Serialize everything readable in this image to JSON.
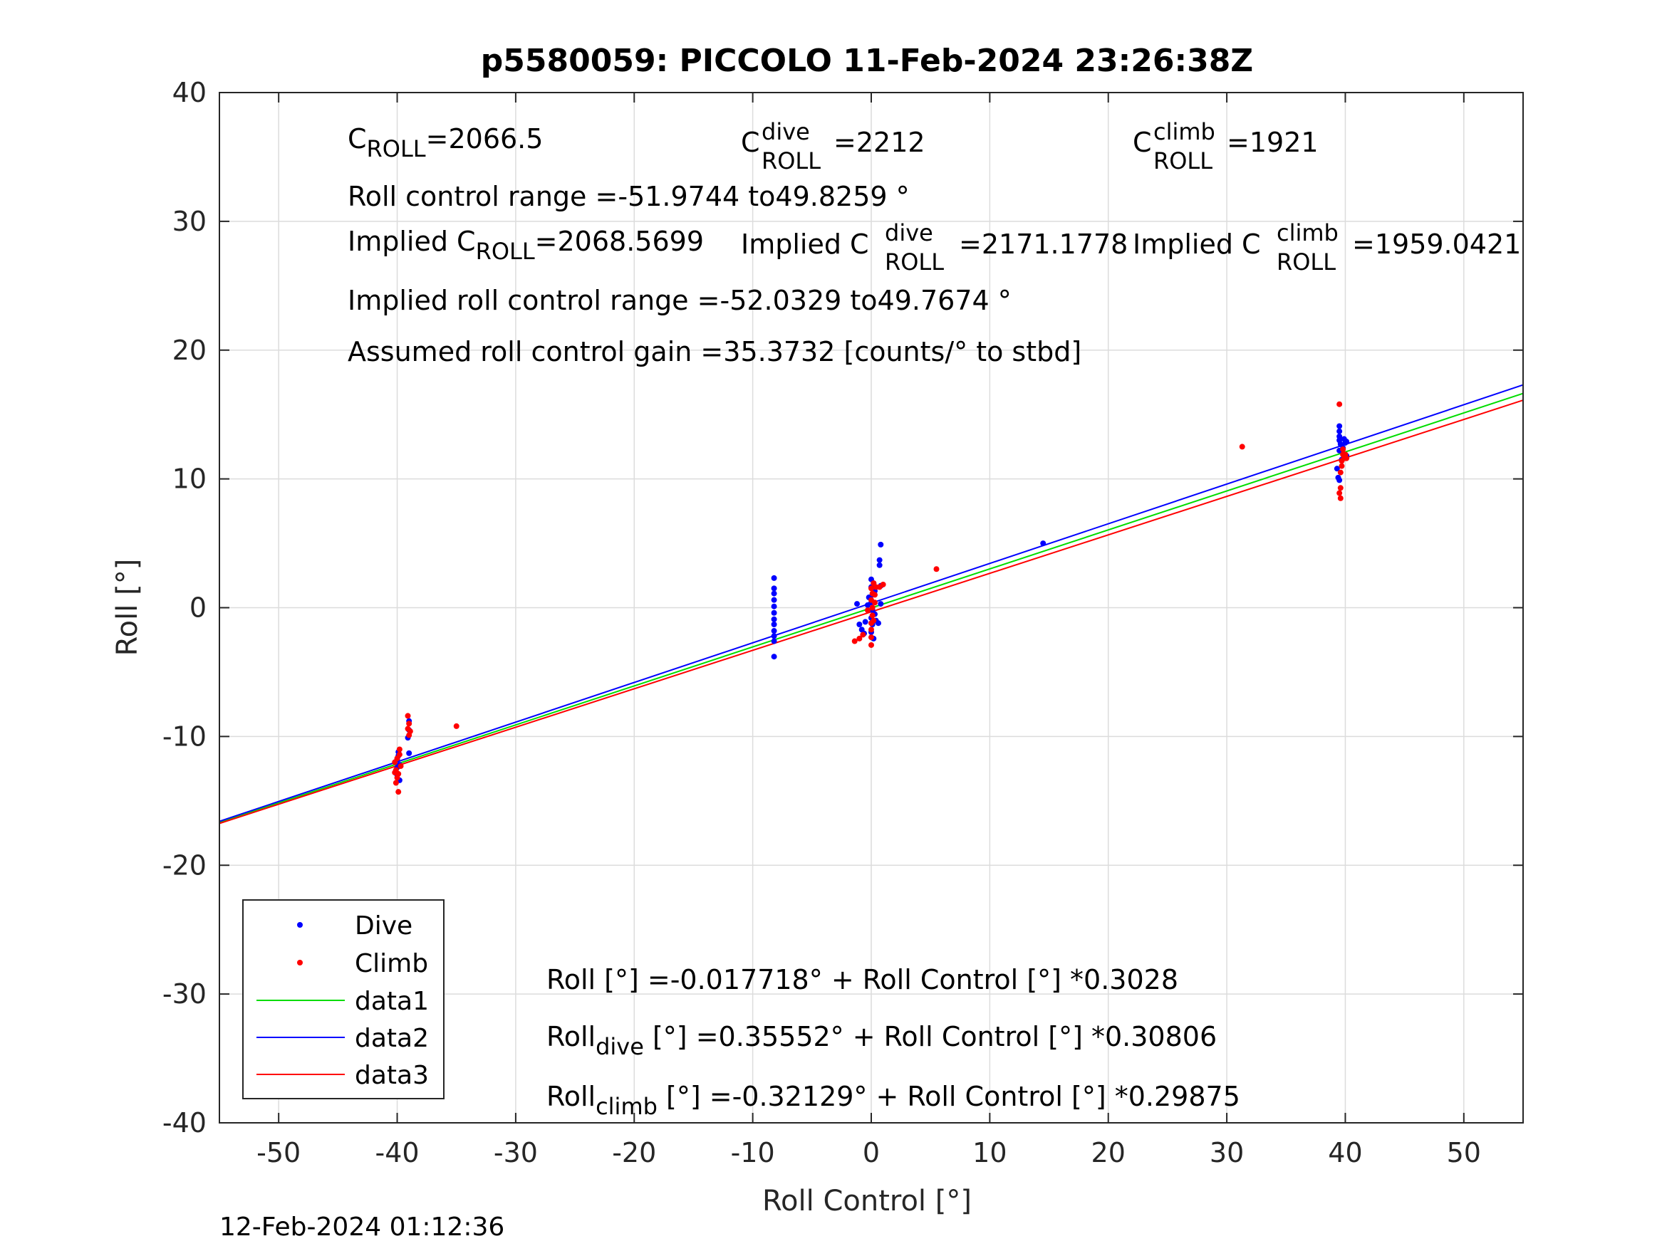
{
  "chart_data": {
    "type": "scatter",
    "title": "p5580059: PICCOLO 11-Feb-2024 23:26:38Z",
    "xlabel": "Roll Control [°]",
    "ylabel": "Roll [°]",
    "xlim": [
      -55,
      55
    ],
    "ylim": [
      -40,
      40
    ],
    "xticks": [
      -50,
      -40,
      -30,
      -20,
      -10,
      0,
      10,
      20,
      30,
      40,
      50
    ],
    "yticks": [
      -40,
      -30,
      -20,
      -10,
      0,
      10,
      20,
      30,
      40
    ],
    "grid": true,
    "legend_position": "bottom-left",
    "timestamp": "12-Feb-2024 01:12:36",
    "colors": {
      "dive": "#0000ff",
      "climb": "#ff0000",
      "data1": "#00dd00",
      "data2": "#0000ff",
      "data3": "#ff0000"
    },
    "legend": [
      {
        "label": "Dive",
        "kind": "marker",
        "color": "#0000ff"
      },
      {
        "label": "Climb",
        "kind": "marker",
        "color": "#ff0000"
      },
      {
        "label": "data1",
        "kind": "line",
        "color": "#00dd00"
      },
      {
        "label": "data2",
        "kind": "line",
        "color": "#0000ff"
      },
      {
        "label": "data3",
        "kind": "line",
        "color": "#ff0000"
      }
    ],
    "series": [
      {
        "name": "data1",
        "kind": "line",
        "intercept": -0.017718,
        "slope": 0.3028
      },
      {
        "name": "data2",
        "kind": "line",
        "intercept": 0.35552,
        "slope": 0.30806
      },
      {
        "name": "data3",
        "kind": "line",
        "intercept": -0.32129,
        "slope": 0.29875
      },
      {
        "name": "Dive",
        "kind": "scatter",
        "points": [
          [
            -40.0,
            -11.8
          ],
          [
            -40.0,
            -12.4
          ],
          [
            -40.0,
            -13.0
          ],
          [
            -39.8,
            -12.2
          ],
          [
            -39.9,
            -11.5
          ],
          [
            -40.1,
            -12.8
          ],
          [
            -39.8,
            -13.4
          ],
          [
            -39.9,
            -11.2
          ],
          [
            -39.0,
            -8.8
          ],
          [
            -39.0,
            -9.5
          ],
          [
            -39.0,
            -11.3
          ],
          [
            -39.1,
            -10.1
          ],
          [
            -8.2,
            2.3
          ],
          [
            -8.2,
            1.5
          ],
          [
            -8.2,
            1.1
          ],
          [
            -8.2,
            0.6
          ],
          [
            -8.2,
            0.1
          ],
          [
            -8.2,
            -0.4
          ],
          [
            -8.2,
            -0.9
          ],
          [
            -8.2,
            -1.3
          ],
          [
            -8.2,
            -1.8
          ],
          [
            -8.2,
            -2.2
          ],
          [
            -8.2,
            -2.6
          ],
          [
            -8.2,
            -3.8
          ],
          [
            -1.2,
            0.3
          ],
          [
            -1.0,
            -1.3
          ],
          [
            -0.8,
            -1.7
          ],
          [
            -0.6,
            -2.0
          ],
          [
            -0.5,
            -1.1
          ],
          [
            -0.3,
            0.2
          ],
          [
            -0.2,
            0.8
          ],
          [
            0.0,
            2.2
          ],
          [
            0.0,
            1.6
          ],
          [
            0.1,
            1.0
          ],
          [
            0.0,
            0.4
          ],
          [
            0.1,
            -0.2
          ],
          [
            0.0,
            -0.8
          ],
          [
            0.1,
            -1.3
          ],
          [
            0.0,
            -1.9
          ],
          [
            0.2,
            -2.4
          ],
          [
            0.3,
            1.3
          ],
          [
            0.3,
            -0.5
          ],
          [
            0.4,
            -1.0
          ],
          [
            0.2,
            1.9
          ],
          [
            0.6,
            -1.2
          ],
          [
            0.8,
            0.3
          ],
          [
            0.8,
            1.7
          ],
          [
            0.7,
            3.3
          ],
          [
            0.7,
            3.7
          ],
          [
            0.8,
            4.9
          ],
          [
            14.5,
            5.0
          ],
          [
            39.3,
            10.8
          ],
          [
            39.4,
            10.1
          ],
          [
            39.5,
            9.9
          ],
          [
            39.5,
            12.2
          ],
          [
            39.5,
            13.0
          ],
          [
            39.5,
            14.1
          ],
          [
            39.5,
            13.7
          ],
          [
            39.5,
            13.3
          ],
          [
            39.6,
            12.7
          ],
          [
            39.7,
            11.5
          ],
          [
            39.8,
            12.4
          ],
          [
            39.9,
            13.1
          ],
          [
            40.0,
            12.8
          ],
          [
            40.1,
            11.8
          ],
          [
            40.1,
            12.9
          ]
        ]
      },
      {
        "name": "Climb",
        "kind": "scatter",
        "points": [
          [
            -40.2,
            -12.0
          ],
          [
            -40.1,
            -12.6
          ],
          [
            -40.0,
            -13.2
          ],
          [
            -39.9,
            -14.3
          ],
          [
            -39.8,
            -11.4
          ],
          [
            -40.0,
            -11.7
          ],
          [
            -39.9,
            -12.9
          ],
          [
            -40.1,
            -13.6
          ],
          [
            -39.7,
            -12.3
          ],
          [
            -39.8,
            -11.0
          ],
          [
            -40.2,
            -12.8
          ],
          [
            -39.1,
            -8.4
          ],
          [
            -39.1,
            -9.4
          ],
          [
            -39.0,
            -9.9
          ],
          [
            -38.9,
            -9.6
          ],
          [
            -39.0,
            -9.0
          ],
          [
            -35.0,
            -9.2
          ],
          [
            -1.4,
            -2.6
          ],
          [
            -1.0,
            -2.4
          ],
          [
            -0.7,
            -2.1
          ],
          [
            -0.3,
            -0.2
          ],
          [
            0.0,
            -2.9
          ],
          [
            0.0,
            -2.3
          ],
          [
            0.0,
            -1.7
          ],
          [
            0.0,
            -1.2
          ],
          [
            0.1,
            -0.6
          ],
          [
            0.1,
            0.0
          ],
          [
            0.0,
            0.6
          ],
          [
            0.1,
            1.1
          ],
          [
            0.0,
            1.5
          ],
          [
            0.2,
            1.9
          ],
          [
            0.3,
            1.0
          ],
          [
            0.2,
            -1.0
          ],
          [
            0.3,
            0.4
          ],
          [
            0.4,
            1.6
          ],
          [
            0.7,
            1.6
          ],
          [
            1.0,
            1.8
          ],
          [
            5.5,
            3.0
          ],
          [
            31.3,
            12.5
          ],
          [
            39.5,
            15.8
          ],
          [
            39.6,
            8.5
          ],
          [
            39.5,
            8.9
          ],
          [
            39.6,
            9.3
          ],
          [
            39.6,
            10.5
          ],
          [
            39.7,
            11.0
          ],
          [
            39.7,
            11.4
          ],
          [
            39.8,
            11.9
          ],
          [
            39.8,
            12.3
          ],
          [
            39.9,
            11.6
          ],
          [
            40.0,
            11.9
          ],
          [
            40.1,
            11.6
          ]
        ]
      }
    ],
    "annotations": {
      "c_roll": {
        "base": "C",
        "sub": "ROLL",
        "value": "=2066.5"
      },
      "c_roll_dive": {
        "base": "C",
        "sup": "dive",
        "sub": "ROLL",
        "value": "=2212"
      },
      "c_roll_climb": {
        "base": "C",
        "sup": "climb",
        "sub": "ROLL",
        "value": "=1921"
      },
      "roll_control_range": "Roll control range =-51.9744 to49.8259 °",
      "implied_c_roll": {
        "prefix": "Implied C",
        "sub": "ROLL",
        "value": "=2068.5699"
      },
      "implied_c_roll_dive": {
        "prefix": "Implied C",
        "sup": "dive",
        "sub": "ROLL",
        "value": "=2171.1778"
      },
      "implied_c_roll_climb": {
        "prefix": "Implied C",
        "sup": "climb",
        "sub": "ROLL",
        "value": "=1959.0421"
      },
      "implied_roll_control_range": "Implied roll control range =-52.0329 to49.7674 °",
      "assumed_gain": "Assumed roll control gain =35.3732 [counts/° to stbd]",
      "fit_all": "Roll [°] =-0.017718° + Roll Control [°] *0.3028",
      "fit_dive": {
        "base": "Roll",
        "sub": "dive",
        "rest": " [°] =0.35552° + Roll Control [°] *0.30806"
      },
      "fit_climb": {
        "base": "Roll",
        "sub": "climb",
        "rest": " [°] =-0.32129° + Roll Control [°] *0.29875"
      }
    }
  }
}
